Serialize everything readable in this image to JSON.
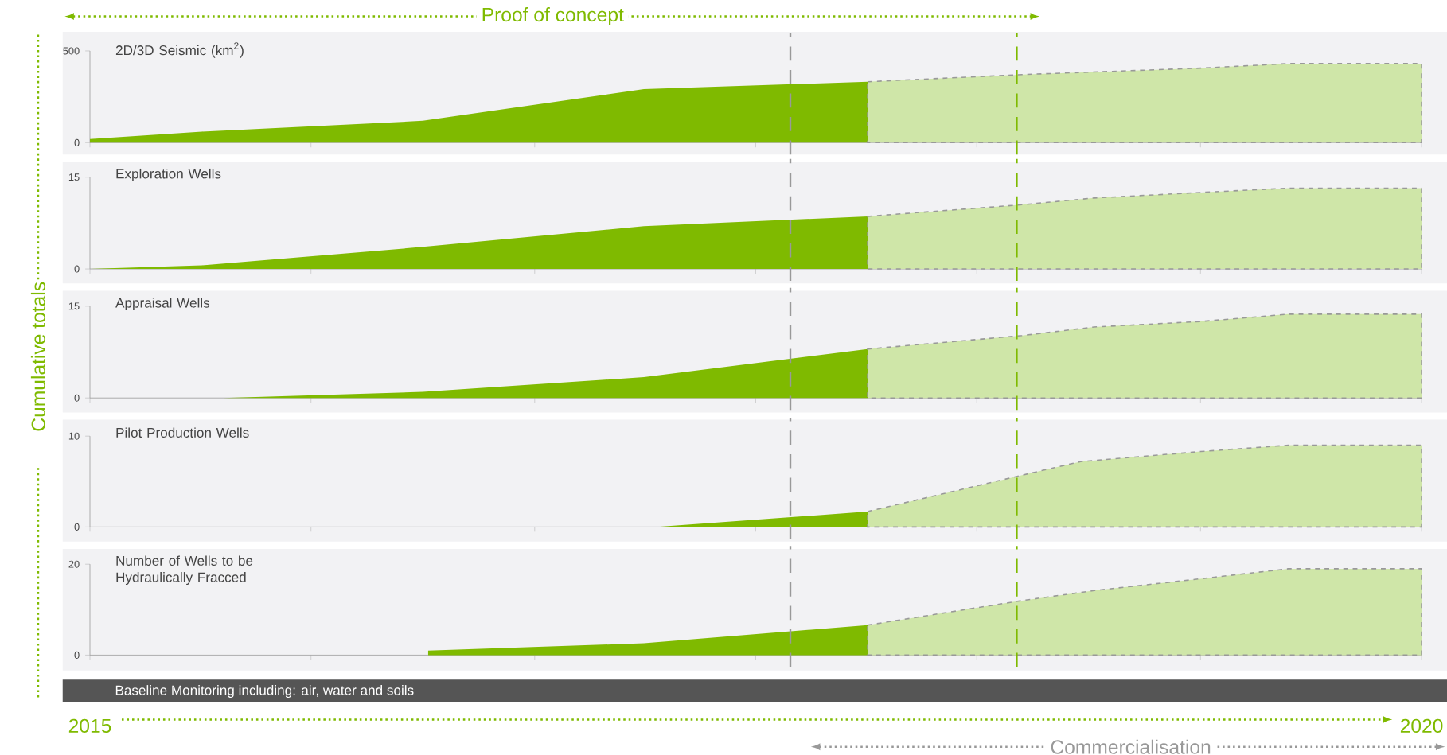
{
  "chart_data": [
    {
      "type": "area",
      "title": "2D/3D Seismic (km$^{2}$)",
      "xlim": [
        2015,
        2020
      ],
      "ylim": [
        0,
        500
      ],
      "yticks": [
        0,
        500
      ],
      "xticks": [
        {
          "value": 2015,
          "label": null
        },
        {
          "value": 2015.83,
          "label": null
        },
        {
          "value": 2016.67,
          "label": null
        },
        {
          "value": 2017.5,
          "label": null
        },
        {
          "value": 2018.33,
          "label": null
        },
        {
          "value": 2019.17,
          "label": null
        },
        {
          "value": 2020,
          "label": null
        }
      ],
      "tick_labels": "y",
      "series": [
        {
          "color": "#7fba00",
          "x": [
            2015,
            2015.42,
            2016.25,
            2017.08,
            2017.92
          ],
          "values": [
            20,
            60,
            119,
            292,
            332
          ]
        },
        {
          "color": "#cfe6a8",
          "line_style": "dashed",
          "x": [
            2017.92,
            2018.5,
            2019.17,
            2019.5,
            2020
          ],
          "values": [
            332,
            371,
            406,
            431,
            431
          ]
        }
      ],
      "ref_lines": [
        {
          "axis": "x",
          "value": 2017.63,
          "color": "#999999",
          "line_style": "dashed"
        },
        {
          "axis": "x",
          "value": 2018.48,
          "color": "#7fba00",
          "line_style": "dashed"
        }
      ],
      "annotations": [
        "Proof of concept",
        "Commercialisation",
        "Baseline Monitoring including: air, water and soils"
      ]
    },
    {
      "type": "area",
      "title": "Exploration Wells",
      "xlim": [
        2015,
        2020
      ],
      "ylim": [
        0,
        15
      ],
      "yticks": [
        0,
        15
      ],
      "xticks": [
        {
          "value": 2015,
          "label": null
        },
        {
          "value": 2015.83,
          "label": null
        },
        {
          "value": 2016.67,
          "label": null
        },
        {
          "value": 2017.5,
          "label": null
        },
        {
          "value": 2018.33,
          "label": null
        },
        {
          "value": 2019.17,
          "label": null
        },
        {
          "value": 2020,
          "label": null
        }
      ],
      "tick_labels": "y",
      "series": [
        {
          "color": "#7fba00",
          "x": [
            2015,
            2015.42,
            2016.25,
            2017.08,
            2017.92
          ],
          "values": [
            0,
            0.6,
            3.6,
            7.0,
            8.6
          ]
        },
        {
          "color": "#cfe6a8",
          "line_style": "dashed",
          "x": [
            2017.92,
            2018.5,
            2018.77,
            2019.17,
            2019.5,
            2020
          ],
          "values": [
            8.6,
            10.5,
            11.6,
            12.5,
            13.2,
            13.2
          ]
        }
      ],
      "ref_lines": [
        {
          "axis": "x",
          "value": 2017.63,
          "color": "#999999",
          "line_style": "dashed"
        },
        {
          "axis": "x",
          "value": 2018.48,
          "color": "#7fba00",
          "line_style": "dashed"
        }
      ]
    },
    {
      "type": "area",
      "title": "Appraisal Wells",
      "ylabel": "Cumulative totals",
      "xlim": [
        2015,
        2020
      ],
      "ylim": [
        0,
        15
      ],
      "yticks": [
        0,
        15
      ],
      "xticks": [
        {
          "value": 2015,
          "label": null
        },
        {
          "value": 2015.83,
          "label": null
        },
        {
          "value": 2016.67,
          "label": null
        },
        {
          "value": 2017.5,
          "label": null
        },
        {
          "value": 2018.33,
          "label": null
        },
        {
          "value": 2019.17,
          "label": null
        },
        {
          "value": 2020,
          "label": null
        }
      ],
      "tick_labels": "y",
      "series": [
        {
          "color": "#7fba00",
          "x": [
            2015,
            2015.5,
            2016.25,
            2017.08,
            2017.92
          ],
          "values": [
            0,
            0,
            1.0,
            3.4,
            8.0
          ]
        },
        {
          "color": "#cfe6a8",
          "line_style": "dashed",
          "x": [
            2017.92,
            2018.5,
            2018.77,
            2019.17,
            2019.5,
            2020
          ],
          "values": [
            8.0,
            10.2,
            11.6,
            12.5,
            13.7,
            13.7
          ]
        }
      ],
      "ref_lines": [
        {
          "axis": "x",
          "value": 2017.63,
          "color": "#999999",
          "line_style": "dashed"
        },
        {
          "axis": "x",
          "value": 2018.48,
          "color": "#7fba00",
          "line_style": "dashed"
        }
      ]
    },
    {
      "type": "area",
      "title": "Pilot Production Wells",
      "xlim": [
        2015,
        2020
      ],
      "ylim": [
        0,
        10
      ],
      "yticks": [
        0,
        10
      ],
      "xticks": [
        {
          "value": 2015,
          "label": null
        },
        {
          "value": 2015.83,
          "label": null
        },
        {
          "value": 2016.67,
          "label": null
        },
        {
          "value": 2017.5,
          "label": null
        },
        {
          "value": 2018.33,
          "label": null
        },
        {
          "value": 2019.17,
          "label": null
        },
        {
          "value": 2020,
          "label": null
        }
      ],
      "tick_labels": "y",
      "series": [
        {
          "color": "#7fba00",
          "x": [
            2015,
            2017.13,
            2017.92
          ],
          "values": [
            0,
            0,
            1.7
          ]
        },
        {
          "color": "#cfe6a8",
          "line_style": "dashed",
          "x": [
            2017.92,
            2018.5,
            2018.72,
            2019.17,
            2019.5,
            2020
          ],
          "values": [
            1.7,
            5.7,
            7.2,
            8.3,
            9.0,
            9.0
          ]
        }
      ],
      "ref_lines": [
        {
          "axis": "x",
          "value": 2017.63,
          "color": "#999999",
          "line_style": "dashed"
        },
        {
          "axis": "x",
          "value": 2018.48,
          "color": "#7fba00",
          "line_style": "dashed"
        }
      ]
    },
    {
      "type": "area",
      "title": "Number of Wells to be Hydraulically Fracced",
      "xlim": [
        2015,
        2020
      ],
      "ylim": [
        0,
        20
      ],
      "yticks": [
        0,
        20
      ],
      "xticks": [
        2015,
        {
          "value": 2015.83,
          "label": null
        },
        {
          "value": 2016.67,
          "label": null
        },
        {
          "value": 2017.5,
          "label": null
        },
        {
          "value": 2018.33,
          "label": null
        },
        {
          "value": 2019.17,
          "label": null
        },
        2020
      ],
      "series": [
        {
          "color": "#7fba00",
          "x": [
            2016.27,
            2016.27,
            2017.08,
            2017.92
          ],
          "values": [
            0,
            1.0,
            2.6,
            6.6
          ]
        },
        {
          "color": "#cfe6a8",
          "line_style": "dashed",
          "x": [
            2017.92,
            2018.5,
            2018.77,
            2019.17,
            2019.5,
            2020
          ],
          "values": [
            6.6,
            12,
            14.2,
            16.8,
            19,
            19
          ]
        }
      ],
      "ref_lines": [
        {
          "axis": "x",
          "value": 2017.63,
          "color": "#999999",
          "line_style": "dashed"
        },
        {
          "axis": "x",
          "value": 2018.48,
          "color": "#7fba00",
          "line_style": "dashed"
        }
      ]
    }
  ]
}
